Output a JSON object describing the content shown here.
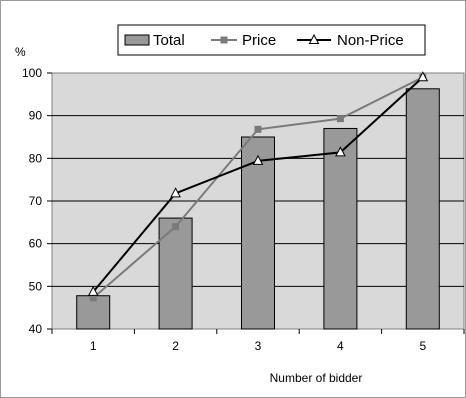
{
  "chart_data": {
    "type": "bar",
    "title": "",
    "xlabel": "Number of bidder",
    "ylabel": "%",
    "categories": [
      "1",
      "2",
      "3",
      "4",
      "5"
    ],
    "ylim": [
      40,
      100
    ],
    "yticks": [
      "40",
      "50",
      "60",
      "70",
      "80",
      "90",
      "100"
    ],
    "grid": true,
    "legend_position": "top",
    "series": [
      {
        "name": "Total",
        "kind": "bar",
        "values": [
          47.8,
          66.0,
          85.0,
          87.0,
          96.3
        ],
        "color": "#999999"
      },
      {
        "name": "Price",
        "kind": "line",
        "marker": "square",
        "values": [
          47.3,
          64.0,
          86.8,
          89.3,
          99.0
        ],
        "color": "#7a7a7a"
      },
      {
        "name": "Non-Price",
        "kind": "line",
        "marker": "triangle",
        "values": [
          48.7,
          71.8,
          79.4,
          81.4,
          99.0
        ],
        "color": "#000000"
      }
    ]
  }
}
